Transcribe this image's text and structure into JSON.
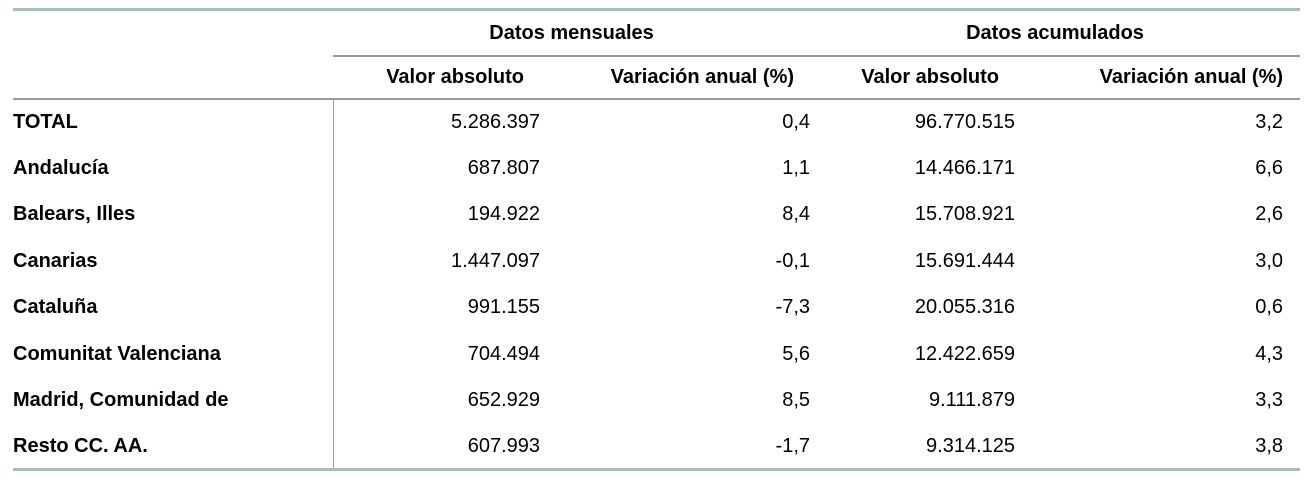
{
  "chart_data": {
    "type": "table",
    "column_groups": [
      "Datos mensuales",
      "Datos acumulados"
    ],
    "sub_headers": [
      "Valor absoluto",
      "Variación anual (%)",
      "Valor absoluto",
      "Variación anual (%)"
    ],
    "rows": [
      {
        "label": "TOTAL",
        "values": [
          "5.286.397",
          "0,4",
          "96.770.515",
          "3,2"
        ]
      },
      {
        "label": "Andalucía",
        "values": [
          "687.807",
          "1,1",
          "14.466.171",
          "6,6"
        ]
      },
      {
        "label": "Balears, Illes",
        "values": [
          "194.922",
          "8,4",
          "15.708.921",
          "2,6"
        ]
      },
      {
        "label": "Canarias",
        "values": [
          "1.447.097",
          "-0,1",
          "15.691.444",
          "3,0"
        ]
      },
      {
        "label": "Cataluña",
        "values": [
          "991.155",
          "-7,3",
          "20.055.316",
          "0,6"
        ]
      },
      {
        "label": "Comunitat Valenciana",
        "values": [
          "704.494",
          "5,6",
          "12.422.659",
          "4,3"
        ]
      },
      {
        "label": "Madrid, Comunidad de",
        "values": [
          "652.929",
          "8,5",
          "9.111.879",
          "3,3"
        ]
      },
      {
        "label": "Resto CC. AA.",
        "values": [
          "607.993",
          "-1,7",
          "9.314.125",
          "3,8"
        ]
      }
    ],
    "layout": {
      "grid": "horizontal rules only, vertical divider after label column",
      "legend_position": "none"
    }
  },
  "colors": {
    "accent_rule": "#a8bdb3",
    "header_rule": "#999999",
    "column_divider": "#9e9e9e",
    "text": "#000000",
    "background": "#ffffff"
  }
}
